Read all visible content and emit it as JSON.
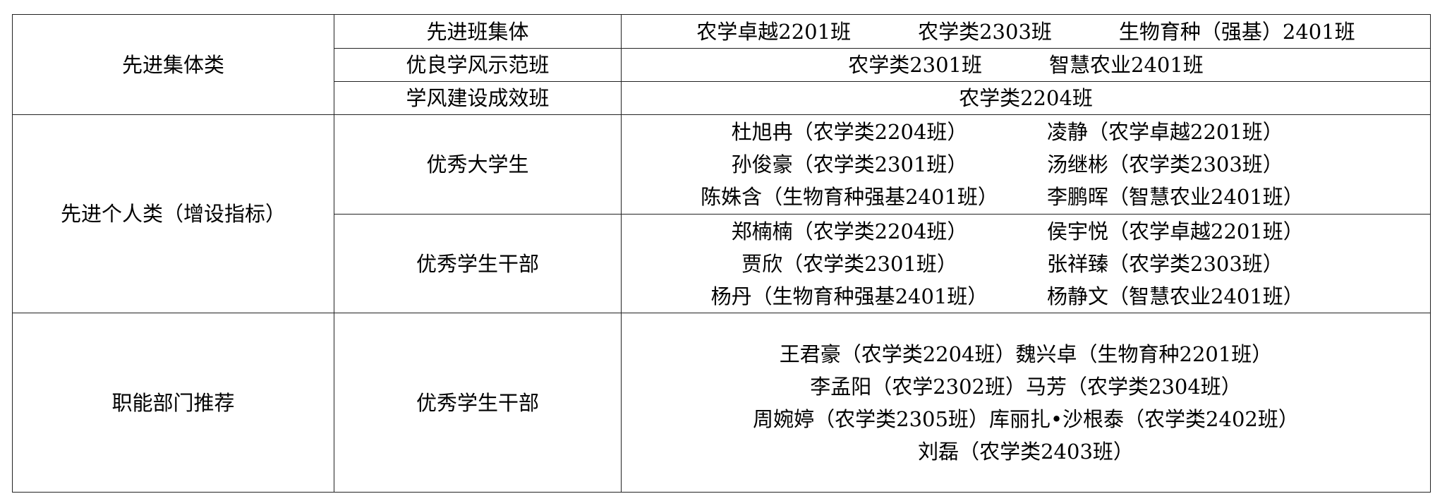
{
  "table": {
    "rows": [
      {
        "category": "先进集体类",
        "items": [
          {
            "award": "先进班集体",
            "lines": [
              [
                "农学卓越2201班",
                "农学类2303班",
                "生物育种（强基）2401班"
              ]
            ]
          },
          {
            "award": "优良学风示范班",
            "lines": [
              [
                "农学类2301班",
                "智慧农业2401班"
              ]
            ]
          },
          {
            "award": "学风建设成效班",
            "lines": [
              [
                "农学类2204班"
              ]
            ]
          }
        ]
      },
      {
        "category": "先进个人类（增设指标）",
        "items": [
          {
            "award": "优秀大学生",
            "lines": [
              [
                "杜旭冉（农学类2204班）",
                "凌静（农学卓越2201班）"
              ],
              [
                "孙俊豪（农学类2301班）",
                "汤继彬（农学类2303班）"
              ],
              [
                "陈姝含（生物育种强基2401班）",
                "李鹏晖（智慧农业2401班）"
              ]
            ]
          },
          {
            "award": "优秀学生干部",
            "lines": [
              [
                "郑楠楠（农学类2204班）",
                "侯宇悦（农学卓越2201班）"
              ],
              [
                "贾欣（农学类2301班）",
                "张祥臻（农学类2303班）"
              ],
              [
                "杨丹（生物育种强基2401班）",
                "杨静文（智慧农业2401班）"
              ]
            ]
          }
        ]
      },
      {
        "category": "职能部门推荐",
        "items": [
          {
            "award": "优秀学生干部",
            "lines": [
              [
                "王君豪（农学类2204班）",
                "魏兴卓（生物育种2201班）"
              ],
              [
                "李孟阳（农学2302班）",
                "马芳（农学类2304班）"
              ],
              [
                "周婉婷（农学类2305班）",
                "库丽扎•沙根泰（农学类2402班）"
              ],
              [
                "刘磊（农学类2403班）"
              ]
            ]
          }
        ]
      }
    ]
  }
}
